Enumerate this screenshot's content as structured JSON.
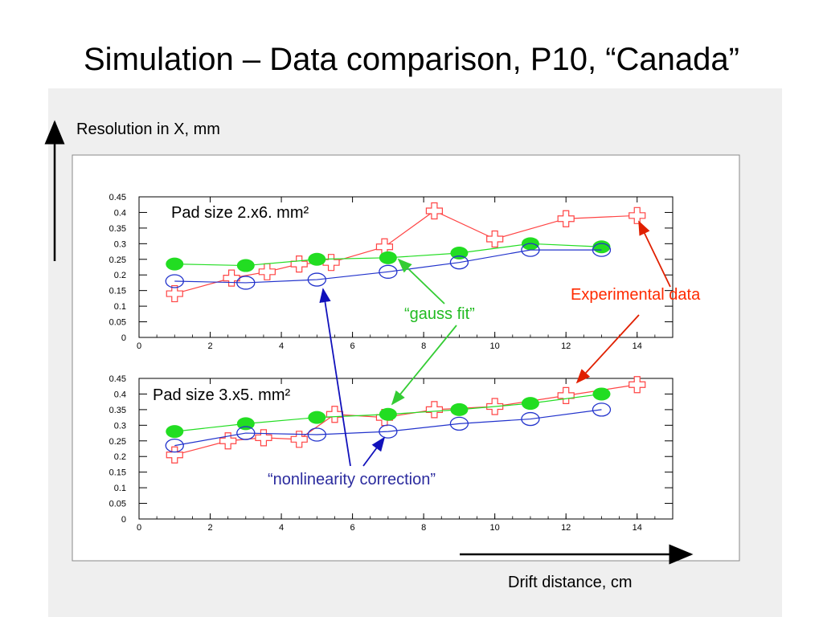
{
  "slide": {
    "title": "Simulation – Data comparison, P10, “Canada”"
  },
  "axes_labels": {
    "y": "Resolution in X, mm",
    "x": "Drift distance, cm"
  },
  "annotations": {
    "experimental": "Experimental data",
    "gauss": "“gauss fit”",
    "nonlinearity": "“nonlinearity correction”"
  },
  "colors": {
    "experimental": "#ff4444",
    "gauss": "#22dd22",
    "nonlinearity": "#2233cc",
    "exp_arrow": "#e02000",
    "gauss_arrow": "#33cc33",
    "nonlin_arrow": "#1111bb"
  },
  "chart_data": [
    {
      "type": "line",
      "title": "Pad size 2.x6. mm²",
      "xlim": [
        0,
        15
      ],
      "ylim": [
        0,
        0.45
      ],
      "x_ticks": [
        "0",
        "2",
        "4",
        "6",
        "8",
        "10",
        "12",
        "14"
      ],
      "y_ticks": [
        "0",
        "0.05",
        "0.1",
        "0.15",
        "0.2",
        "0.25",
        "0.3",
        "0.35",
        "0.4",
        "0.45"
      ],
      "grid": false,
      "series": [
        {
          "key": "experimental",
          "marker": "cross",
          "x": [
            1,
            2.6,
            3.6,
            4.5,
            5.4,
            6.9,
            8.3,
            10,
            12,
            14
          ],
          "y": [
            0.14,
            0.19,
            0.21,
            0.235,
            0.24,
            0.29,
            0.405,
            0.315,
            0.38,
            0.39
          ]
        },
        {
          "key": "gauss",
          "marker": "filled-circle",
          "x": [
            1,
            3,
            5,
            7,
            9,
            11,
            13
          ],
          "y": [
            0.235,
            0.23,
            0.25,
            0.255,
            0.27,
            0.3,
            0.29
          ]
        },
        {
          "key": "nonlinearity",
          "marker": "open-circle",
          "x": [
            1,
            3,
            5,
            7,
            9,
            11,
            13
          ],
          "y": [
            0.18,
            0.175,
            0.185,
            0.21,
            0.24,
            0.28,
            0.28
          ]
        }
      ]
    },
    {
      "type": "line",
      "title": "Pad size 3.x5. mm²",
      "xlim": [
        0,
        15
      ],
      "ylim": [
        0,
        0.45
      ],
      "x_ticks": [
        "0",
        "2",
        "4",
        "6",
        "8",
        "10",
        "12",
        "14"
      ],
      "y_ticks": [
        "0",
        "0.05",
        "0.1",
        "0.15",
        "0.2",
        "0.25",
        "0.3",
        "0.35",
        "0.4",
        "0.45"
      ],
      "grid": false,
      "series": [
        {
          "key": "experimental",
          "marker": "cross",
          "x": [
            1,
            2.5,
            3.5,
            4.5,
            5.5,
            6.9,
            8.3,
            10,
            12,
            14
          ],
          "y": [
            0.205,
            0.25,
            0.26,
            0.255,
            0.335,
            0.325,
            0.35,
            0.36,
            0.395,
            0.43
          ]
        },
        {
          "key": "gauss",
          "marker": "filled-circle",
          "x": [
            1,
            3,
            5,
            7,
            9,
            11,
            13
          ],
          "y": [
            0.28,
            0.305,
            0.325,
            0.335,
            0.35,
            0.37,
            0.4
          ]
        },
        {
          "key": "nonlinearity",
          "marker": "open-circle",
          "x": [
            1,
            3,
            5,
            7,
            9,
            11,
            13
          ],
          "y": [
            0.235,
            0.275,
            0.27,
            0.28,
            0.305,
            0.32,
            0.35
          ]
        }
      ]
    }
  ]
}
